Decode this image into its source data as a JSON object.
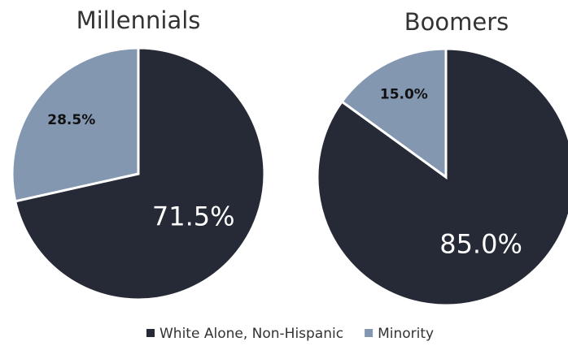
{
  "chart_data": [
    {
      "type": "pie",
      "title": "Millennials",
      "values": [
        71.5,
        28.5
      ],
      "value_labels": [
        "71.5%",
        "28.5%"
      ]
    },
    {
      "type": "pie",
      "title": "Boomers",
      "values": [
        85.0,
        15.0
      ],
      "value_labels": [
        "85.0%",
        "15.0%"
      ]
    }
  ],
  "legend": {
    "categories": [
      "White Alone, Non-Hispanic",
      "Minority"
    ],
    "colors": [
      "#252a36",
      "#8497b0"
    ]
  }
}
